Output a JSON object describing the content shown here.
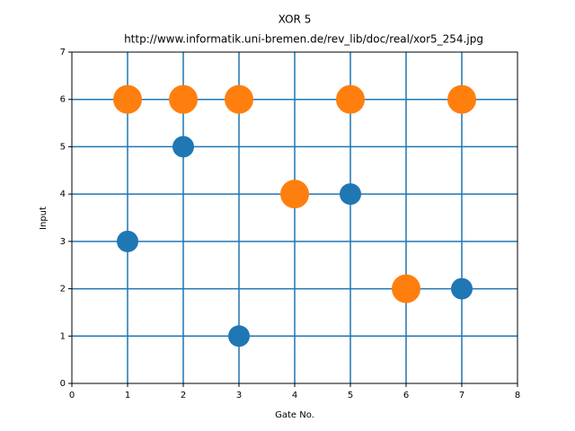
{
  "chart_data": {
    "type": "scatter",
    "title": "XOR 5",
    "subtitle": "http://www.informatik.uni-bremen.de/rev_lib/doc/real/xor5_254.jpg",
    "x_label": "Gate No.",
    "y_label": "Input",
    "xlim": [
      0,
      8
    ],
    "ylim": [
      0,
      7
    ],
    "xticks": [
      0,
      1,
      2,
      3,
      4,
      5,
      6,
      7,
      8
    ],
    "yticks": [
      0,
      1,
      2,
      3,
      4,
      5,
      6,
      7
    ],
    "grid": true,
    "grid_color": "#1f77b4",
    "series": [
      {
        "color": "#1f77b4",
        "marker_size": 12,
        "x": [
          1,
          2,
          3,
          5,
          7
        ],
        "values": [
          3,
          5,
          1,
          4,
          2
        ]
      },
      {
        "color": "#ff7f0e",
        "marker_size": 16,
        "x": [
          1,
          2,
          3,
          5,
          7,
          4,
          6
        ],
        "values": [
          6,
          6,
          6,
          6,
          6,
          4,
          2
        ]
      }
    ]
  }
}
